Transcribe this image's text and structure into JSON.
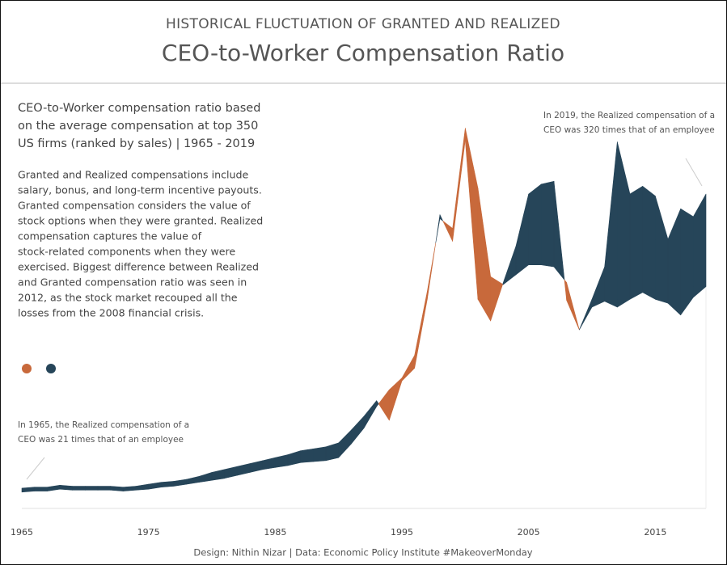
{
  "chart_data": {
    "type": "difference-area",
    "title_top": "HISTORICAL FLUCTUATION OF GRANTED AND REALIZED",
    "title": "CEO-to-Worker Compensation Ratio",
    "subtitle_lines": [
      "CEO-to-Worker compensation ratio based",
      "on the average compensation at top 350",
      "US firms (ranked by sales) | 1965 - 2019"
    ],
    "description_lines": [
      "Granted and Realized compensations include",
      "salary, bonus, and long-term incentive payouts.",
      "Granted compensation considers the value of",
      "stock options when they were granted. Realized",
      "compensation captures the value of",
      "stock-related components when they were",
      "exercised. Biggest difference between Realized",
      "and Granted compensation ratio was seen in",
      "2012, as the stock market recouped all the",
      "losses from the 2008 financial crisis."
    ],
    "annotation_start_lines": [
      "In 1965, the Realized compensation of  a",
      "CEO was 21 times that of an employee"
    ],
    "annotation_end_lines": [
      "In 2019, the Realized compensation of a",
      "CEO was 320 times that of an employee"
    ],
    "footer": "Design: Nithin Nizar | Data: Economic Policy Institute #MakeoverMonday",
    "x": [
      1965,
      1966,
      1967,
      1968,
      1969,
      1970,
      1971,
      1972,
      1973,
      1974,
      1975,
      1976,
      1977,
      1978,
      1979,
      1980,
      1981,
      1982,
      1983,
      1984,
      1985,
      1986,
      1987,
      1988,
      1989,
      1990,
      1991,
      1992,
      1993,
      1994,
      1995,
      1996,
      1997,
      1998,
      1999,
      2000,
      2001,
      2002,
      2003,
      2004,
      2005,
      2006,
      2007,
      2008,
      2009,
      2010,
      2011,
      2012,
      2013,
      2014,
      2015,
      2016,
      2017,
      2018,
      2019
    ],
    "series": [
      {
        "color": "#264559",
        "values": [
          21,
          22,
          22,
          24,
          23,
          23,
          23,
          23,
          22,
          23,
          25,
          27,
          28,
          30,
          33,
          37,
          40,
          43,
          46,
          49,
          52,
          55,
          59,
          61,
          63,
          67,
          80,
          94,
          110,
          90,
          130,
          143,
          213,
          299,
          272,
          375,
          213,
          191,
          230,
          267,
          320,
          330,
          333,
          212,
          182,
          213,
          246,
          373,
          320,
          328,
          318,
          274,
          305,
          297,
          320
        ]
      },
      {
        "color": "#c8693b",
        "values": [
          17,
          18,
          18,
          20,
          19,
          19,
          19,
          19,
          18,
          19,
          20,
          22,
          23,
          25,
          27,
          29,
          31,
          34,
          37,
          40,
          42,
          44,
          47,
          48,
          49,
          52,
          66,
          82,
          104,
          121,
          133,
          156,
          221,
          295,
          285,
          387,
          326,
          236,
          228,
          238,
          248,
          248,
          246,
          230,
          182,
          205,
          211,
          205,
          213,
          220,
          213,
          209,
          197,
          215,
          226
        ]
      }
    ],
    "xlim": [
      1965,
      2019
    ],
    "xticks": [
      1965,
      1975,
      1985,
      1995,
      2005,
      2015
    ],
    "ylim": [
      0,
      400
    ]
  }
}
